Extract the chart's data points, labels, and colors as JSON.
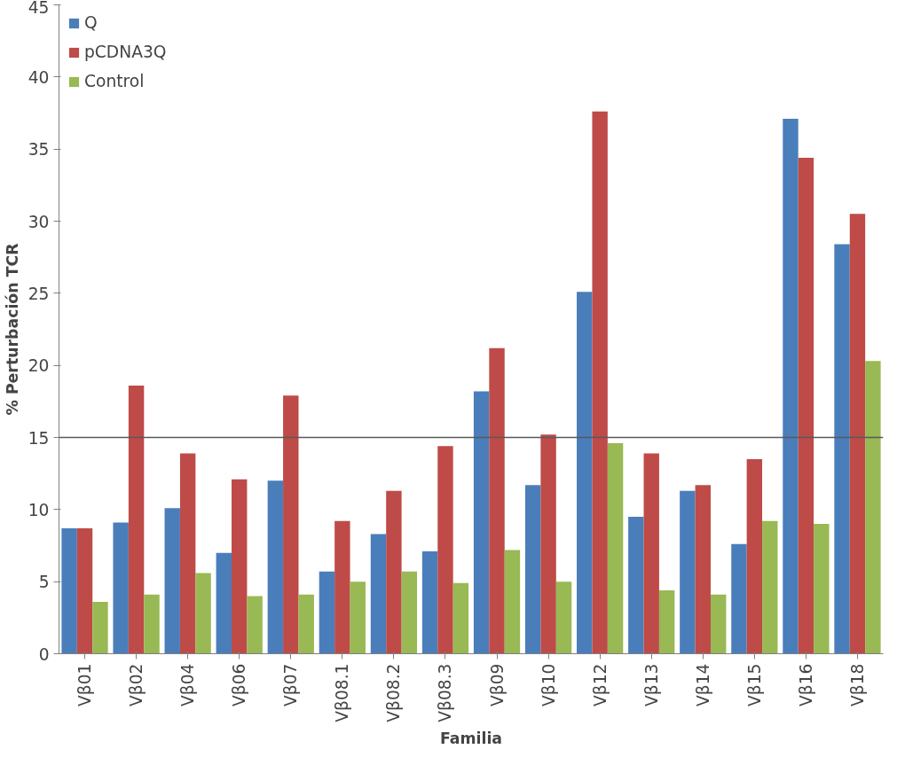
{
  "chart_data": {
    "type": "bar",
    "xlabel": "Familia",
    "ylabel": "% Perturbación TCR",
    "categories": [
      "Vβ01",
      "Vβ02",
      "Vβ04",
      "Vβ06",
      "Vβ07",
      "Vβ08.1",
      "Vβ08.2",
      "Vβ08.3",
      "Vβ09",
      "Vβ10",
      "Vβ12",
      "Vβ13",
      "Vβ14",
      "Vβ15",
      "Vβ16",
      "Vβ18"
    ],
    "series": [
      {
        "name": "Q",
        "color": "#4a7ebb",
        "values": [
          8.7,
          9.1,
          10.1,
          7.0,
          12.0,
          5.7,
          8.3,
          7.1,
          18.2,
          11.7,
          25.1,
          9.5,
          11.3,
          7.6,
          37.1,
          28.4
        ]
      },
      {
        "name": "pCDNA3Q",
        "color": "#be4b48",
        "values": [
          8.7,
          18.6,
          13.9,
          12.1,
          17.9,
          9.2,
          11.3,
          14.4,
          21.2,
          15.2,
          37.6,
          13.9,
          11.7,
          13.5,
          34.4,
          30.5
        ]
      },
      {
        "name": "Control",
        "color": "#98b954",
        "values": [
          3.6,
          4.1,
          5.6,
          4.0,
          4.1,
          5.0,
          5.7,
          4.9,
          7.2,
          5.0,
          14.6,
          4.4,
          4.1,
          9.2,
          9.0,
          20.3
        ]
      }
    ],
    "ylim": [
      0,
      45
    ],
    "yticks": [
      0,
      5,
      10,
      15,
      20,
      25,
      30,
      35,
      40,
      45
    ],
    "grid": false,
    "legend": "top left",
    "ref_lines": [
      {
        "axis": "y",
        "value": 15,
        "color": "#595959"
      }
    ]
  }
}
